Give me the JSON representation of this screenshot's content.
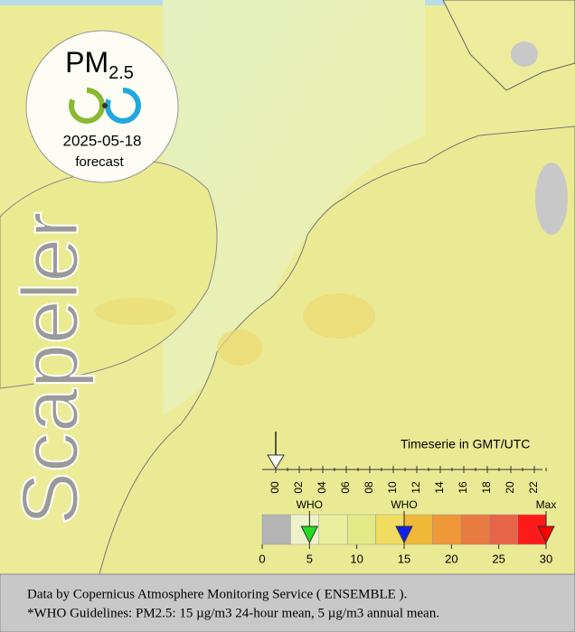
{
  "badge": {
    "title": "PM",
    "subscript": "2.5",
    "date": "2025-05-18",
    "label": "forecast"
  },
  "brand": "Scapeler",
  "timeline": {
    "title": "Timeserie in GMT/UTC",
    "hours": [
      "00",
      "02",
      "04",
      "06",
      "08",
      "10",
      "12",
      "14",
      "16",
      "18",
      "20",
      "22"
    ],
    "current": 0
  },
  "scale": {
    "range": [
      0,
      30
    ],
    "ticks": [
      0,
      5,
      10,
      15,
      20,
      25,
      30
    ],
    "colors": [
      "#b4b4b4",
      "#eef2c8",
      "#e8ee9c",
      "#e2ea88",
      "#f0dc60",
      "#f0b838",
      "#ee9838",
      "#e87c40",
      "#e86448",
      "#ff1a1a"
    ],
    "markers": [
      {
        "label": "WHO",
        "value": 5,
        "color": "#22dd22"
      },
      {
        "label": "WHO",
        "value": 15,
        "color": "#1020ee"
      },
      {
        "label": "Max",
        "value": 30,
        "color": "#ff0000"
      }
    ]
  },
  "footer": {
    "lines": [
      "Data by Copernicus Atmosphere Monitoring Service ( ENSEMBLE ).",
      "*WHO Guidelines: PM2.5: 15 µg/m3 24-hour mean, 5 µg/m3 annual mean."
    ]
  }
}
